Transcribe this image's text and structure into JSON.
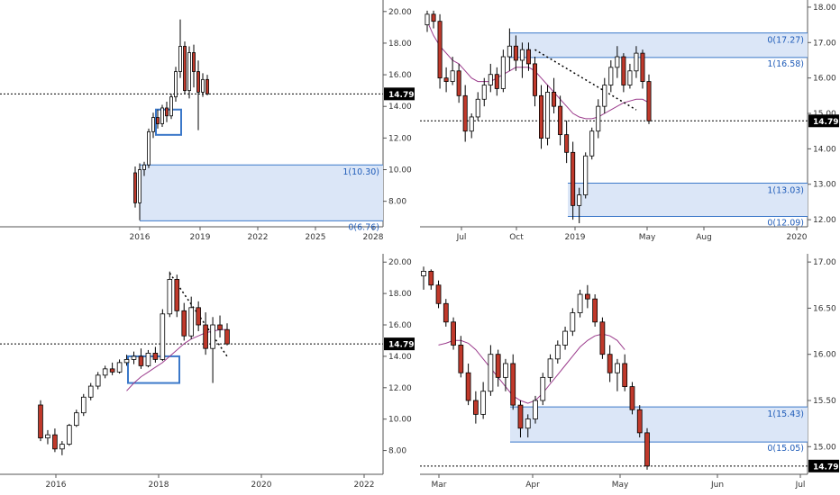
{
  "colors": {
    "bull": "#ffffff",
    "bear": "#c0392b",
    "wick": "#000000",
    "zone_fill": "#dbe6f7",
    "zone_border": "#3b78c9",
    "ma": "#9b3b8c",
    "price_badge": "#000000",
    "grid": "#e6e6e6"
  },
  "current_price": "14.79",
  "chart_data": [
    {
      "id": "tl",
      "type": "candlestick",
      "timeframe_hint": "monthly",
      "x_ticks": [
        "2016",
        "2019",
        "2022",
        "2025",
        "2028"
      ],
      "y_ticks": [
        "8.00",
        "10.00",
        "12.00",
        "14.00",
        "16.00",
        "18.00",
        "20.00"
      ],
      "ylim": [
        6.5,
        20.5
      ],
      "current_price": 14.79,
      "zones": [
        {
          "top": 10.3,
          "bottom": 6.76,
          "top_label": "1(10.30)",
          "bottom_label": "0(6.76)"
        }
      ],
      "boxes": [
        {
          "top": 13.8,
          "bottom": 12.2
        }
      ],
      "ma": false,
      "trendline": false,
      "candles": [
        [
          9.8,
          10.2,
          7.6,
          7.9
        ],
        [
          7.9,
          10.4,
          6.8,
          10.0
        ],
        [
          10.0,
          10.5,
          9.6,
          10.3
        ],
        [
          10.3,
          12.6,
          10.1,
          12.4
        ],
        [
          12.4,
          13.6,
          12.0,
          13.3
        ],
        [
          13.3,
          13.8,
          12.6,
          12.9
        ],
        [
          12.9,
          14.1,
          12.7,
          13.9
        ],
        [
          13.9,
          14.3,
          13.0,
          13.4
        ],
        [
          13.4,
          14.8,
          13.2,
          14.6
        ],
        [
          14.6,
          16.5,
          14.3,
          16.2
        ],
        [
          16.2,
          19.5,
          15.8,
          17.8
        ],
        [
          17.8,
          18.1,
          14.8,
          15.0
        ],
        [
          15.0,
          17.8,
          14.5,
          17.4
        ],
        [
          17.4,
          17.9,
          15.2,
          16.2
        ],
        [
          16.2,
          16.9,
          12.5,
          14.9
        ],
        [
          14.9,
          16.1,
          14.6,
          15.7
        ],
        [
          15.7,
          16.0,
          14.7,
          14.79
        ]
      ]
    },
    {
      "id": "tr",
      "type": "candlestick",
      "timeframe_hint": "daily",
      "x_ticks": [
        "Jul",
        "Oct",
        "2019",
        "May",
        "Aug",
        "2020"
      ],
      "y_ticks": [
        "12.00",
        "13.00",
        "14.00",
        "15.00",
        "16.00",
        "17.00",
        "18.00"
      ],
      "ylim": [
        11.85,
        18.1
      ],
      "current_price": 14.79,
      "zones": [
        {
          "top": 17.27,
          "bottom": 16.58,
          "top_label": "0(17.27)",
          "bottom_label": "1(16.58)"
        },
        {
          "top": 13.03,
          "bottom": 12.09,
          "top_label": "1(13.03)",
          "bottom_label": "0(12.09)"
        }
      ],
      "boxes": [],
      "ma": true,
      "trendline": true,
      "candles": [
        [
          17.5,
          17.9,
          17.3,
          17.8
        ],
        [
          17.8,
          17.9,
          17.4,
          17.6
        ],
        [
          17.6,
          17.8,
          15.7,
          16.0
        ],
        [
          16.0,
          16.3,
          15.6,
          15.9
        ],
        [
          15.9,
          16.6,
          15.8,
          16.2
        ],
        [
          16.2,
          16.4,
          15.3,
          15.5
        ],
        [
          15.5,
          15.8,
          14.2,
          14.5
        ],
        [
          14.5,
          15.0,
          14.3,
          14.9
        ],
        [
          14.9,
          15.6,
          14.8,
          15.4
        ],
        [
          15.4,
          16.0,
          15.2,
          15.8
        ],
        [
          15.8,
          16.4,
          15.6,
          16.1
        ],
        [
          16.1,
          16.3,
          15.5,
          15.7
        ],
        [
          15.7,
          16.8,
          15.6,
          16.6
        ],
        [
          16.6,
          17.4,
          16.2,
          16.9
        ],
        [
          16.9,
          17.2,
          16.2,
          16.5
        ],
        [
          16.5,
          17.0,
          16.0,
          16.8
        ],
        [
          16.8,
          17.0,
          16.2,
          16.4
        ],
        [
          16.4,
          16.6,
          15.2,
          15.5
        ],
        [
          15.5,
          15.8,
          14.0,
          14.3
        ],
        [
          14.3,
          15.8,
          14.1,
          15.6
        ],
        [
          15.6,
          16.0,
          15.0,
          15.2
        ],
        [
          15.2,
          15.5,
          14.1,
          14.4
        ],
        [
          14.4,
          14.8,
          13.6,
          13.9
        ],
        [
          13.9,
          14.2,
          12.0,
          12.4
        ],
        [
          12.4,
          12.9,
          11.9,
          12.7
        ],
        [
          12.7,
          13.9,
          12.6,
          13.8
        ],
        [
          13.8,
          14.6,
          13.7,
          14.5
        ],
        [
          14.5,
          15.4,
          14.3,
          15.2
        ],
        [
          15.2,
          16.0,
          15.0,
          15.8
        ],
        [
          15.8,
          16.5,
          15.6,
          16.3
        ],
        [
          16.3,
          16.9,
          16.0,
          16.6
        ],
        [
          16.6,
          16.7,
          15.6,
          15.8
        ],
        [
          15.8,
          16.4,
          15.7,
          16.2
        ],
        [
          16.2,
          16.9,
          16.0,
          16.7
        ],
        [
          16.7,
          16.8,
          15.7,
          15.9
        ],
        [
          15.9,
          16.1,
          14.7,
          14.79
        ]
      ],
      "trend_points": [
        [
          17,
          16.8
        ],
        [
          33,
          15.1
        ]
      ],
      "ma_values": [
        17.6,
        17.2,
        16.9,
        16.7,
        16.5,
        16.4,
        16.2,
        16.0,
        15.9,
        15.9,
        15.9,
        16.0,
        16.1,
        16.2,
        16.3,
        16.3,
        16.3,
        16.2,
        16.0,
        15.8,
        15.6,
        15.4,
        15.2,
        15.0,
        14.9,
        14.85,
        14.85,
        14.9,
        15.0,
        15.1,
        15.2,
        15.3,
        15.35,
        15.4,
        15.4,
        15.3
      ]
    },
    {
      "id": "bl",
      "type": "candlestick",
      "timeframe_hint": "weekly",
      "x_ticks": [
        "2016",
        "2018",
        "2020",
        "2022"
      ],
      "y_ticks": [
        "8.00",
        "10.00",
        "12.00",
        "14.00",
        "16.00",
        "18.00",
        "20.00"
      ],
      "ylim": [
        6.6,
        20.3
      ],
      "current_price": 14.79,
      "zones": [],
      "boxes": [
        {
          "top": 14.0,
          "bottom": 12.3
        }
      ],
      "ma": true,
      "trendline": true,
      "candles": [
        [
          10.9,
          11.2,
          8.6,
          8.8
        ],
        [
          8.8,
          9.3,
          8.4,
          9.0
        ],
        [
          9.0,
          9.4,
          7.9,
          8.1
        ],
        [
          8.1,
          8.6,
          7.7,
          8.4
        ],
        [
          8.4,
          9.7,
          8.3,
          9.6
        ],
        [
          9.6,
          10.6,
          9.5,
          10.4
        ],
        [
          10.4,
          11.6,
          10.2,
          11.4
        ],
        [
          11.4,
          12.3,
          11.2,
          12.1
        ],
        [
          12.1,
          13.0,
          11.9,
          12.8
        ],
        [
          12.8,
          13.4,
          12.6,
          13.2
        ],
        [
          13.2,
          13.6,
          12.8,
          13.0
        ],
        [
          13.0,
          13.8,
          12.9,
          13.6
        ],
        [
          13.6,
          14.1,
          13.4,
          13.8
        ],
        [
          13.8,
          14.3,
          13.5,
          14.0
        ],
        [
          14.0,
          14.5,
          13.2,
          13.4
        ],
        [
          13.4,
          14.4,
          13.3,
          14.2
        ],
        [
          14.2,
          14.6,
          13.6,
          13.8
        ],
        [
          13.8,
          17.0,
          13.7,
          16.7
        ],
        [
          16.7,
          19.4,
          16.5,
          18.9
        ],
        [
          18.9,
          19.2,
          16.5,
          16.9
        ],
        [
          16.9,
          17.4,
          15.0,
          15.3
        ],
        [
          15.3,
          17.8,
          15.1,
          17.1
        ],
        [
          17.1,
          17.5,
          15.6,
          16.0
        ],
        [
          16.0,
          16.8,
          14.1,
          14.5
        ],
        [
          14.5,
          16.5,
          12.3,
          16.0
        ],
        [
          16.0,
          16.6,
          15.2,
          15.7
        ],
        [
          15.7,
          16.1,
          14.7,
          14.79
        ]
      ],
      "trend_points": [
        [
          18,
          19.3
        ],
        [
          26,
          14.0
        ]
      ],
      "ma_values": [
        null,
        null,
        null,
        null,
        null,
        null,
        null,
        null,
        null,
        null,
        null,
        null,
        11.8,
        12.3,
        12.7,
        13.0,
        13.3,
        13.6,
        14.0,
        14.4,
        14.8,
        15.1,
        15.3,
        15.5,
        15.6,
        15.7,
        15.7
      ]
    },
    {
      "id": "br",
      "type": "candlestick",
      "timeframe_hint": "4h",
      "x_ticks": [
        "Mar",
        "Apr",
        "May",
        "Jun",
        "Jul"
      ],
      "y_ticks": [
        "15.00",
        "15.50",
        "16.00",
        "16.50",
        "17.00"
      ],
      "ylim": [
        14.72,
        17.05
      ],
      "current_price": 14.79,
      "zones": [
        {
          "top": 15.43,
          "bottom": 15.05,
          "top_label": "1(15.43)",
          "bottom_label": "0(15.05)"
        }
      ],
      "boxes": [],
      "ma": true,
      "trendline": false,
      "candles": [
        [
          16.85,
          16.95,
          16.7,
          16.9
        ],
        [
          16.9,
          16.92,
          16.7,
          16.75
        ],
        [
          16.75,
          16.8,
          16.5,
          16.55
        ],
        [
          16.55,
          16.6,
          16.3,
          16.35
        ],
        [
          16.35,
          16.4,
          16.05,
          16.1
        ],
        [
          16.1,
          16.2,
          15.75,
          15.8
        ],
        [
          15.8,
          15.9,
          15.45,
          15.5
        ],
        [
          15.5,
          15.6,
          15.25,
          15.35
        ],
        [
          15.35,
          15.7,
          15.3,
          15.6
        ],
        [
          15.6,
          16.1,
          15.55,
          16.0
        ],
        [
          16.0,
          16.05,
          15.65,
          15.75
        ],
        [
          15.75,
          15.95,
          15.6,
          15.9
        ],
        [
          15.9,
          16.0,
          15.4,
          15.45
        ],
        [
          15.45,
          15.5,
          15.1,
          15.2
        ],
        [
          15.2,
          15.35,
          15.1,
          15.3
        ],
        [
          15.3,
          15.55,
          15.25,
          15.5
        ],
        [
          15.5,
          15.8,
          15.45,
          15.75
        ],
        [
          15.75,
          16.0,
          15.7,
          15.95
        ],
        [
          15.95,
          16.15,
          15.9,
          16.1
        ],
        [
          16.1,
          16.3,
          16.05,
          16.25
        ],
        [
          16.25,
          16.5,
          16.2,
          16.45
        ],
        [
          16.45,
          16.7,
          16.4,
          16.65
        ],
        [
          16.65,
          16.75,
          16.5,
          16.6
        ],
        [
          16.6,
          16.65,
          16.3,
          16.35
        ],
        [
          16.35,
          16.4,
          15.95,
          16.0
        ],
        [
          16.0,
          16.1,
          15.7,
          15.8
        ],
        [
          15.8,
          15.95,
          15.6,
          15.9
        ],
        [
          15.9,
          16.0,
          15.6,
          15.65
        ],
        [
          15.65,
          15.7,
          15.35,
          15.4
        ],
        [
          15.4,
          15.45,
          15.1,
          15.15
        ],
        [
          15.15,
          15.2,
          14.75,
          14.79
        ]
      ],
      "ma_values": [
        null,
        null,
        16.1,
        16.12,
        16.15,
        16.15,
        16.12,
        16.05,
        15.95,
        15.85,
        15.75,
        15.65,
        15.55,
        15.5,
        15.47,
        15.5,
        15.58,
        15.68,
        15.78,
        15.88,
        15.98,
        16.08,
        16.15,
        16.2,
        16.22,
        16.2,
        16.15,
        16.05,
        null,
        null,
        null
      ]
    }
  ]
}
